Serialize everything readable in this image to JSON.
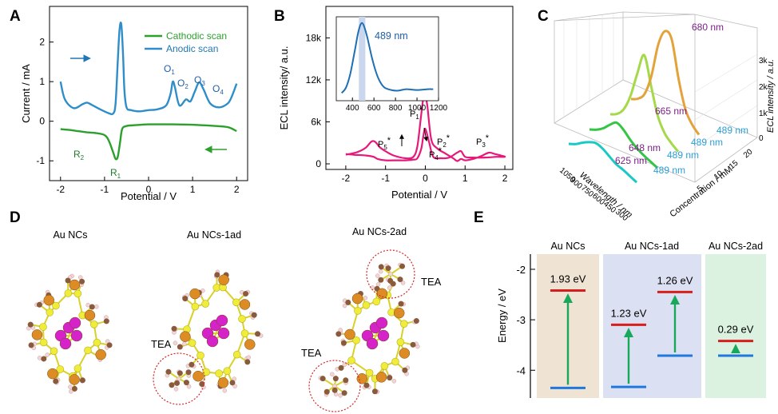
{
  "panels": {
    "a": {
      "label": "A",
      "chart_data": {
        "type": "line",
        "xlabel": "Potential / V",
        "ylabel": "Current / mA",
        "xlim": [
          -2,
          2
        ],
        "ylim": [
          -1.5,
          2.9
        ],
        "xticks": [
          -2,
          -1,
          0,
          1,
          2
        ],
        "yticks": [
          -1,
          0,
          1,
          2
        ],
        "peak_labels": [
          "O1",
          "O2",
          "O3",
          "O4",
          "R1",
          "R2"
        ],
        "series": [
          {
            "name": "Cathodic scan",
            "color": "#2ca02c",
            "x": [
              -2,
              -1.8,
              -1.6,
              -1.4,
              -1.2,
              -1.0,
              -0.9,
              -0.8,
              -0.75,
              -0.7,
              -0.65,
              -0.6,
              -0.5,
              -0.3,
              0,
              0.5,
              1.0,
              1.5,
              1.8,
              2.0
            ],
            "y": [
              -0.2,
              -0.22,
              -0.25,
              -0.28,
              -0.3,
              -0.35,
              -0.5,
              -0.8,
              -0.95,
              -0.9,
              -0.55,
              -0.2,
              -0.12,
              -0.1,
              -0.08,
              -0.08,
              -0.09,
              -0.12,
              -0.15,
              -0.25
            ]
          },
          {
            "name": "Anodic scan",
            "color": "#2f8ec9",
            "x": [
              -2,
              -1.9,
              -1.7,
              -1.5,
              -1.4,
              -1.3,
              -1.1,
              -0.9,
              -0.8,
              -0.75,
              -0.7,
              -0.66,
              -0.62,
              -0.58,
              -0.55,
              -0.5,
              -0.4,
              -0.2,
              0,
              0.2,
              0.4,
              0.5,
              0.55,
              0.6,
              0.7,
              0.85,
              0.95,
              1.05,
              1.15,
              1.25,
              1.4,
              1.6,
              1.8,
              1.9,
              2.0
            ],
            "y": [
              1.0,
              0.55,
              0.33,
              0.43,
              0.47,
              0.42,
              0.3,
              0.2,
              0.2,
              0.45,
              1.5,
              2.3,
              2.45,
              1.7,
              0.8,
              0.35,
              0.28,
              0.25,
              0.28,
              0.3,
              0.4,
              0.7,
              1.0,
              0.85,
              0.4,
              0.55,
              0.5,
              0.75,
              0.98,
              0.8,
              0.45,
              0.35,
              0.45,
              0.65,
              0.95
            ]
          }
        ]
      }
    },
    "b": {
      "label": "B",
      "chart_data": [
        {
          "type": "line",
          "xlabel": "Potential / V",
          "ylabel": "ECL intensity/ a.u.",
          "xlim": [
            -2.5,
            2.2
          ],
          "ylim": [
            -800,
            22500
          ],
          "xticks": [
            -2,
            -1,
            0,
            1,
            2
          ],
          "yticks": [
            0,
            6000,
            12000,
            18000
          ],
          "ytick_labels": [
            "0",
            "6k",
            "12k",
            "18k"
          ],
          "peak_labels": [
            "P1*",
            "P2*",
            "P3*",
            "P4*",
            "P5*"
          ],
          "series": [
            {
              "color": "#e6197a",
              "x": [
                -2,
                -1.7,
                -1.5,
                -1.35,
                -1.25,
                -1.15,
                -1.0,
                -0.8,
                -0.5,
                -0.3,
                -0.2,
                -0.12,
                -0.05,
                0.0,
                0.05,
                0.15,
                0.3,
                0.5,
                0.7,
                0.8,
                0.9,
                1.0,
                1.2,
                1.4,
                1.6,
                1.75,
                1.9,
                2.0,
                1.8,
                1.5,
                1.2,
                1.0,
                0.9,
                0.8,
                0.6,
                0.4,
                0.2,
                0.1,
                0.0,
                -0.05,
                -0.1,
                -0.2,
                -0.3,
                -0.5,
                -0.7,
                -1.0,
                -1.2,
                -1.3,
                -1.5,
                -1.8,
                -2.0
              ],
              "y": [
                1300,
                1700,
                2300,
                3200,
                3100,
                2400,
                1800,
                1200,
                800,
                1000,
                2500,
                6200,
                9400,
                9700,
                8300,
                3500,
                2200,
                1500,
                800,
                400,
                700,
                500,
                700,
                1100,
                1600,
                1400,
                1200,
                1000,
                1000,
                900,
                900,
                1000,
                1800,
                1600,
                900,
                800,
                1000,
                3000,
                5000,
                4000,
                2200,
                800,
                600,
                500,
                500,
                500,
                700,
                1000,
                1200,
                1300,
                1400
              ]
            }
          ]
        },
        {
          "type": "line",
          "inset": true,
          "xlim": [
            250,
            1200
          ],
          "ylim": [
            0,
            1.05
          ],
          "xticks": [
            400,
            600,
            800,
            1000,
            1200
          ],
          "highlight_x": [
            460,
            520
          ],
          "annotations": [
            "489 nm"
          ],
          "series": [
            {
              "color": "#1f6fb4",
              "x": [
                300,
                340,
                380,
                420,
                450,
                470,
                489,
                510,
                540,
                580,
                620,
                660,
                700,
                760,
                820,
                900,
                1000,
                1100,
                1150
              ],
              "y": [
                0.08,
                0.15,
                0.33,
                0.62,
                0.85,
                0.96,
                1.0,
                0.95,
                0.8,
                0.55,
                0.35,
                0.22,
                0.15,
                0.12,
                0.11,
                0.13,
                0.12,
                0.13,
                0.13
              ]
            }
          ]
        }
      ]
    },
    "c": {
      "label": "C",
      "chart_data": {
        "type": "line",
        "xlabel": "Wavelength / nm",
        "zlabel": "Concentration / mM",
        "ylabel": "ECL intensity / a.u.",
        "wavelength_ticks": [
          300,
          450,
          600,
          750,
          900,
          1050
        ],
        "concentration_ticks": [
          5,
          10,
          15,
          20
        ],
        "intensity_ticks": [
          "0",
          "1k",
          "2k",
          "3k"
        ],
        "series": [
          {
            "color": "#1bc9c4",
            "labels": [
              "625 nm",
              "489 nm"
            ],
            "y": [
              0,
              0.05,
              0.12,
              0.18,
              0.22,
              0.2,
              0.15,
              0.1,
              0.08,
              0.05,
              0.02
            ]
          },
          {
            "color": "#35c545",
            "labels": [
              "648 nm",
              "489 nm"
            ],
            "y": [
              0,
              0.05,
              0.12,
              0.22,
              0.3,
              0.26,
              0.18,
              0.12,
              0.08,
              0.05,
              0.02
            ]
          },
          {
            "color": "#a5d94a",
            "labels": [
              "665 nm",
              "489 nm"
            ],
            "y": [
              0,
              0.05,
              0.15,
              0.35,
              0.65,
              0.9,
              0.6,
              0.3,
              0.15,
              0.08,
              0.03
            ]
          },
          {
            "color": "#e3a23a",
            "labels": [
              "680 nm",
              "489 nm"
            ],
            "y": [
              0,
              0.05,
              0.15,
              0.4,
              0.8,
              1.0,
              0.95,
              0.55,
              0.25,
              0.12,
              0.05
            ]
          }
        ]
      }
    },
    "d": {
      "label": "D",
      "structures": [
        "Au NCs",
        "Au NCs-1ad",
        "Au NCs-2ad"
      ],
      "tea_label": "TEA"
    },
    "e": {
      "label": "E",
      "headers": [
        "Au NCs",
        "Au NCs-1ad",
        "Au NCs-2ad"
      ],
      "chart_data": {
        "type": "bar",
        "ylabel": "Energy / eV",
        "ylim": [
          -4.55,
          -1.7
        ],
        "yticks": [
          -2,
          -3,
          -4
        ],
        "systems": [
          {
            "name": "Au NCs",
            "levels": [
              {
                "lumo": -2.42,
                "homo": -4.35,
                "gap": "1.93 eV"
              }
            ]
          },
          {
            "name": "Au NCs-1ad",
            "levels": [
              {
                "lumo": -3.1,
                "homo": -4.33,
                "gap": "1.23 eV"
              },
              {
                "lumo": -2.45,
                "homo": -3.71,
                "gap": "1.26 eV"
              }
            ]
          },
          {
            "name": "Au NCs-2ad",
            "levels": [
              {
                "lumo": -3.42,
                "homo": -3.71,
                "gap": "0.29 eV"
              }
            ]
          }
        ]
      }
    }
  }
}
